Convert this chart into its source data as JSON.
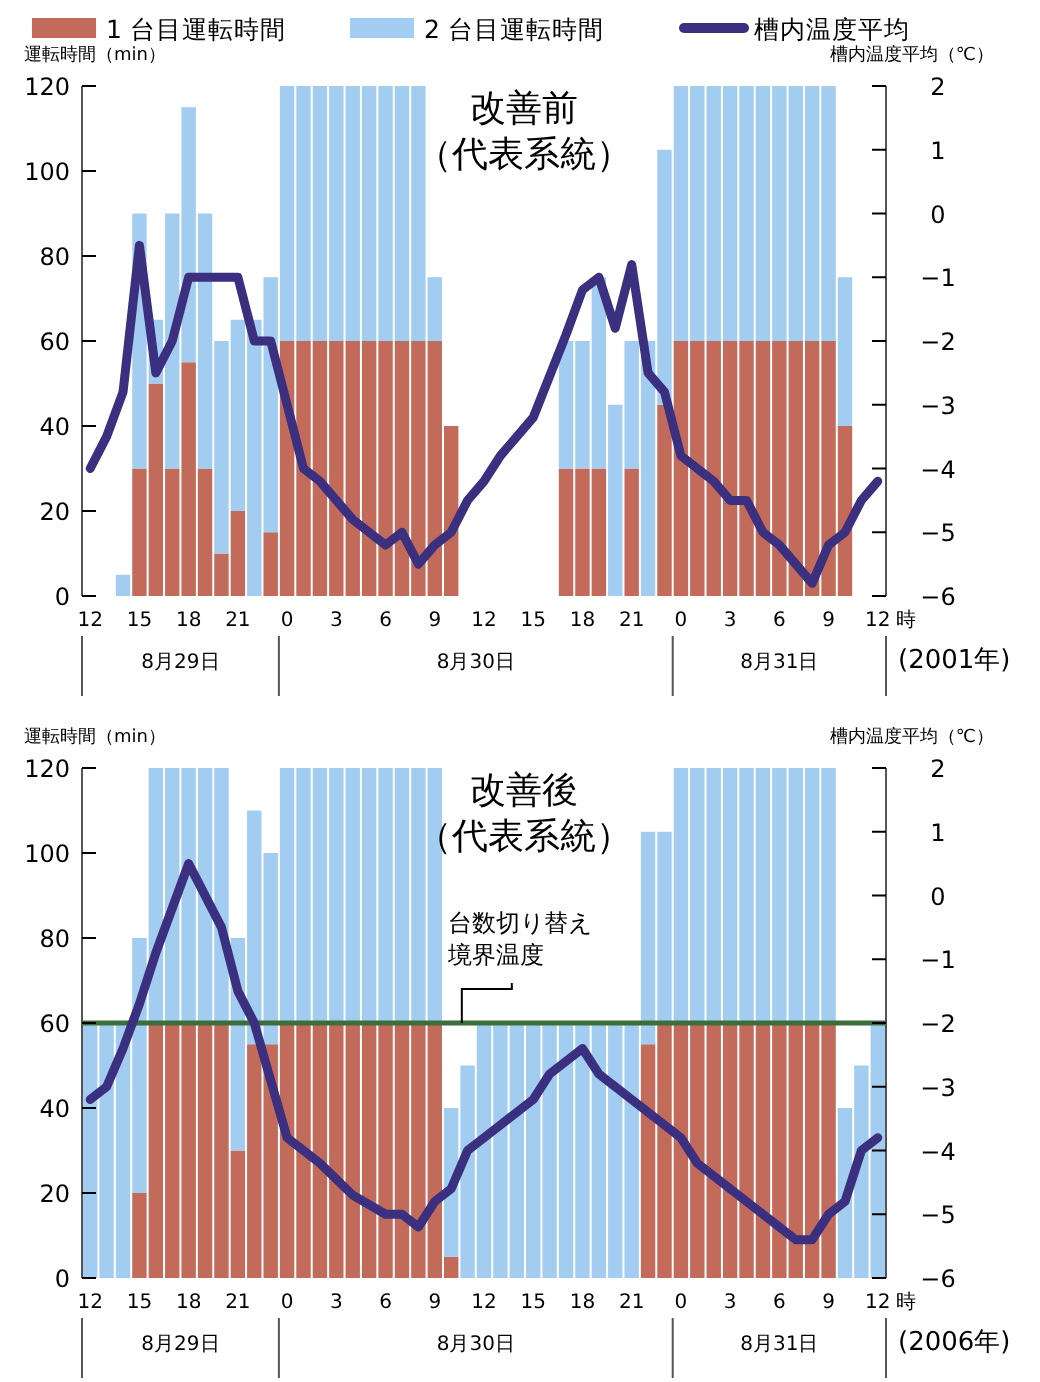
{
  "chart_data": [
    {
      "type": "bar",
      "stacked": true,
      "title": "改善前",
      "subtitle": "（代表系統）",
      "ylabel": "運転時間（min）",
      "y2label": "槽内温度平均（℃）",
      "xlabel": "時",
      "legend": "top",
      "x": [
        "2001-08-29T12:00",
        "2001-08-29T13:00",
        "2001-08-29T14:00",
        "2001-08-29T15:00",
        "2001-08-29T16:00",
        "2001-08-29T17:00",
        "2001-08-29T18:00",
        "2001-08-29T19:00",
        "2001-08-29T20:00",
        "2001-08-29T21:00",
        "2001-08-29T22:00",
        "2001-08-29T23:00",
        "2001-08-30T00:00",
        "2001-08-30T01:00",
        "2001-08-30T02:00",
        "2001-08-30T03:00",
        "2001-08-30T04:00",
        "2001-08-30T05:00",
        "2001-08-30T06:00",
        "2001-08-30T07:00",
        "2001-08-30T08:00",
        "2001-08-30T09:00",
        "2001-08-30T10:00",
        "2001-08-30T11:00",
        "2001-08-30T12:00",
        "2001-08-30T13:00",
        "2001-08-30T14:00",
        "2001-08-30T15:00",
        "2001-08-30T16:00",
        "2001-08-30T17:00",
        "2001-08-30T18:00",
        "2001-08-30T19:00",
        "2001-08-30T20:00",
        "2001-08-30T21:00",
        "2001-08-30T22:00",
        "2001-08-30T23:00",
        "2001-08-31T00:00",
        "2001-08-31T01:00",
        "2001-08-31T02:00",
        "2001-08-31T03:00",
        "2001-08-31T04:00",
        "2001-08-31T05:00",
        "2001-08-31T06:00",
        "2001-08-31T07:00",
        "2001-08-31T08:00",
        "2001-08-31T09:00",
        "2001-08-31T10:00",
        "2001-08-31T11:00",
        "2001-08-31T12:00"
      ],
      "xlim": [
        "2001-08-29T11:30",
        "2001-08-31T12:30"
      ],
      "xticks": [
        {
          "value": "2001-08-29T12:00",
          "label": "12"
        },
        {
          "value": "2001-08-29T15:00",
          "label": "15"
        },
        {
          "value": "2001-08-29T18:00",
          "label": "18"
        },
        {
          "value": "2001-08-29T21:00",
          "label": "21"
        },
        {
          "value": "2001-08-30T00:00",
          "label": "0"
        },
        {
          "value": "2001-08-30T03:00",
          "label": "3"
        },
        {
          "value": "2001-08-30T06:00",
          "label": "6"
        },
        {
          "value": "2001-08-30T09:00",
          "label": "9"
        },
        {
          "value": "2001-08-30T12:00",
          "label": "12"
        },
        {
          "value": "2001-08-30T15:00",
          "label": "15"
        },
        {
          "value": "2001-08-30T18:00",
          "label": "18"
        },
        {
          "value": "2001-08-30T21:00",
          "label": "21"
        },
        {
          "value": "2001-08-31T00:00",
          "label": "0"
        },
        {
          "value": "2001-08-31T03:00",
          "label": "3"
        },
        {
          "value": "2001-08-31T06:00",
          "label": "6"
        },
        {
          "value": "2001-08-31T09:00",
          "label": "9"
        },
        {
          "value": "2001-08-31T12:00",
          "label": "12"
        }
      ],
      "ylim": [
        0,
        120
      ],
      "yticks": [
        0,
        20,
        40,
        60,
        80,
        100,
        120
      ],
      "y2lim": [
        -6,
        2
      ],
      "y2ticks": [
        {
          "value": -6,
          "label": "−6"
        },
        {
          "value": -5,
          "label": "−5"
        },
        {
          "value": -4,
          "label": "−4"
        },
        {
          "value": -3,
          "label": "−3"
        },
        {
          "value": -2,
          "label": "−2"
        },
        {
          "value": -1,
          "label": "−1"
        },
        0,
        1,
        2
      ],
      "series": [
        {
          "name": "1 台目運転時間",
          "color": "#c26b5b",
          "values": [
            0,
            0,
            0,
            30,
            50,
            30,
            55,
            30,
            10,
            20,
            0,
            15,
            60,
            60,
            60,
            60,
            60,
            60,
            60,
            60,
            60,
            60,
            40,
            0,
            0,
            0,
            0,
            0,
            0,
            30,
            30,
            30,
            0,
            30,
            0,
            45,
            60,
            60,
            60,
            60,
            60,
            60,
            60,
            60,
            60,
            60,
            40,
            0,
            0
          ]
        },
        {
          "name": "2 台目運転時間",
          "color": "#a3cdf0",
          "values": [
            0,
            0,
            5,
            60,
            15,
            60,
            60,
            60,
            50,
            45,
            65,
            60,
            60,
            60,
            60,
            60,
            60,
            60,
            60,
            60,
            60,
            15,
            0,
            0,
            0,
            0,
            0,
            0,
            0,
            30,
            30,
            45,
            45,
            30,
            60,
            60,
            60,
            60,
            60,
            60,
            60,
            60,
            60,
            60,
            60,
            60,
            35,
            0,
            0
          ]
        },
        {
          "name": "槽内温度平均",
          "type": "line",
          "axis": "y2",
          "color": "#3b2f80",
          "x": [
            "2001-08-29T12:00",
            "2001-08-29T13:00",
            "2001-08-29T14:00",
            "2001-08-29T15:00",
            "2001-08-29T16:00",
            "2001-08-29T17:00",
            "2001-08-29T18:00",
            "2001-08-29T21:00",
            "2001-08-29T22:00",
            "2001-08-29T23:00",
            "2001-08-30T01:00",
            "2001-08-30T02:00",
            "2001-08-30T04:00",
            "2001-08-30T06:00",
            "2001-08-30T07:00",
            "2001-08-30T08:00",
            "2001-08-30T09:00",
            "2001-08-30T10:00",
            "2001-08-30T11:00",
            "2001-08-30T12:00",
            "2001-08-30T13:00",
            "2001-08-30T15:00",
            "2001-08-30T17:00",
            "2001-08-30T18:00",
            "2001-08-30T19:00",
            "2001-08-30T20:00",
            "2001-08-30T21:00",
            "2001-08-30T22:00",
            "2001-08-30T23:00",
            "2001-08-31T00:00",
            "2001-08-31T02:00",
            "2001-08-31T03:00",
            "2001-08-31T04:00",
            "2001-08-31T05:00",
            "2001-08-31T06:00",
            "2001-08-31T08:00",
            "2001-08-31T09:00",
            "2001-08-31T10:00",
            "2001-08-31T11:00",
            "2001-08-31T12:00"
          ],
          "values": [
            -4.0,
            -3.5,
            -2.8,
            -0.5,
            -2.5,
            -2.0,
            -1.0,
            -1.0,
            -2.0,
            -2.0,
            -4.0,
            -4.2,
            -4.8,
            -5.2,
            -5.0,
            -5.5,
            -5.2,
            -5.0,
            -4.5,
            -4.2,
            -3.8,
            -3.2,
            -1.9,
            -1.2,
            -1.0,
            -1.8,
            -0.8,
            -2.5,
            -2.8,
            -3.8,
            -4.2,
            -4.5,
            -4.5,
            -5.0,
            -5.2,
            -5.8,
            -5.2,
            -5.0,
            -4.5,
            -4.2
          ]
        }
      ],
      "annotations": [
        "8月29日",
        "8月30日",
        "8月31日",
        "(2001年)"
      ]
    },
    {
      "type": "bar",
      "stacked": true,
      "title": "改善後",
      "subtitle": "（代表系統）",
      "ylabel": "運転時間（min）",
      "y2label": "槽内温度平均（℃）",
      "xlabel": "時",
      "x": [
        "2006-08-29T12:00",
        "2006-08-29T13:00",
        "2006-08-29T14:00",
        "2006-08-29T15:00",
        "2006-08-29T16:00",
        "2006-08-29T17:00",
        "2006-08-29T18:00",
        "2006-08-29T19:00",
        "2006-08-29T20:00",
        "2006-08-29T21:00",
        "2006-08-29T22:00",
        "2006-08-29T23:00",
        "2006-08-30T00:00",
        "2006-08-30T01:00",
        "2006-08-30T02:00",
        "2006-08-30T03:00",
        "2006-08-30T04:00",
        "2006-08-30T05:00",
        "2006-08-30T06:00",
        "2006-08-30T07:00",
        "2006-08-30T08:00",
        "2006-08-30T09:00",
        "2006-08-30T10:00",
        "2006-08-30T11:00",
        "2006-08-30T12:00",
        "2006-08-30T13:00",
        "2006-08-30T14:00",
        "2006-08-30T15:00",
        "2006-08-30T16:00",
        "2006-08-30T17:00",
        "2006-08-30T18:00",
        "2006-08-30T19:00",
        "2006-08-30T20:00",
        "2006-08-30T21:00",
        "2006-08-30T22:00",
        "2006-08-30T23:00",
        "2006-08-31T00:00",
        "2006-08-31T01:00",
        "2006-08-31T02:00",
        "2006-08-31T03:00",
        "2006-08-31T04:00",
        "2006-08-31T05:00",
        "2006-08-31T06:00",
        "2006-08-31T07:00",
        "2006-08-31T08:00",
        "2006-08-31T09:00",
        "2006-08-31T10:00",
        "2006-08-31T11:00",
        "2006-08-31T12:00"
      ],
      "xlim": [
        "2006-08-29T11:30",
        "2006-08-31T12:30"
      ],
      "xticks": [
        {
          "value": "2006-08-29T12:00",
          "label": "12"
        },
        {
          "value": "2006-08-29T15:00",
          "label": "15"
        },
        {
          "value": "2006-08-29T18:00",
          "label": "18"
        },
        {
          "value": "2006-08-29T21:00",
          "label": "21"
        },
        {
          "value": "2006-08-30T00:00",
          "label": "0"
        },
        {
          "value": "2006-08-30T03:00",
          "label": "3"
        },
        {
          "value": "2006-08-30T06:00",
          "label": "6"
        },
        {
          "value": "2006-08-30T09:00",
          "label": "9"
        },
        {
          "value": "2006-08-30T12:00",
          "label": "12"
        },
        {
          "value": "2006-08-30T15:00",
          "label": "15"
        },
        {
          "value": "2006-08-30T18:00",
          "label": "18"
        },
        {
          "value": "2006-08-30T21:00",
          "label": "21"
        },
        {
          "value": "2006-08-31T00:00",
          "label": "0"
        },
        {
          "value": "2006-08-31T03:00",
          "label": "3"
        },
        {
          "value": "2006-08-31T06:00",
          "label": "6"
        },
        {
          "value": "2006-08-31T09:00",
          "label": "9"
        },
        {
          "value": "2006-08-31T12:00",
          "label": "12"
        }
      ],
      "ylim": [
        0,
        120
      ],
      "yticks": [
        0,
        20,
        40,
        60,
        80,
        100,
        120
      ],
      "y2lim": [
        -6,
        2
      ],
      "y2ticks": [
        {
          "value": -6,
          "label": "−6"
        },
        {
          "value": -5,
          "label": "−5"
        },
        {
          "value": -4,
          "label": "−4"
        },
        {
          "value": -3,
          "label": "−3"
        },
        {
          "value": -2,
          "label": "−2"
        },
        {
          "value": -1,
          "label": "−1"
        },
        0,
        1,
        2
      ],
      "series": [
        {
          "color": "#c26b5b",
          "values": [
            0,
            0,
            0,
            20,
            60,
            60,
            60,
            60,
            60,
            30,
            55,
            55,
            60,
            60,
            60,
            60,
            60,
            60,
            60,
            60,
            60,
            60,
            5,
            0,
            0,
            0,
            0,
            0,
            0,
            0,
            0,
            0,
            0,
            0,
            55,
            60,
            60,
            60,
            60,
            60,
            60,
            60,
            60,
            60,
            60,
            60,
            0,
            0,
            0
          ]
        },
        {
          "color": "#a3cdf0",
          "values": [
            60,
            60,
            60,
            60,
            60,
            60,
            60,
            60,
            60,
            50,
            55,
            45,
            60,
            60,
            60,
            60,
            60,
            60,
            60,
            60,
            60,
            60,
            35,
            50,
            60,
            60,
            60,
            60,
            60,
            60,
            60,
            60,
            60,
            60,
            50,
            45,
            60,
            60,
            60,
            60,
            60,
            60,
            60,
            60,
            60,
            60,
            40,
            50,
            60
          ]
        },
        {
          "type": "line",
          "axis": "y2",
          "color": "#3b2f80",
          "x": [
            "2006-08-29T12:00",
            "2006-08-29T13:00",
            "2006-08-29T14:00",
            "2006-08-29T15:00",
            "2006-08-29T16:00",
            "2006-08-29T18:00",
            "2006-08-29T20:00",
            "2006-08-29T21:00",
            "2006-08-29T22:00",
            "2006-08-29T23:00",
            "2006-08-30T00:00",
            "2006-08-30T02:00",
            "2006-08-30T04:00",
            "2006-08-30T06:00",
            "2006-08-30T07:00",
            "2006-08-30T08:00",
            "2006-08-30T09:00",
            "2006-08-30T10:00",
            "2006-08-30T11:00",
            "2006-08-30T12:00",
            "2006-08-30T13:00",
            "2006-08-30T15:00",
            "2006-08-30T16:00",
            "2006-08-30T17:00",
            "2006-08-30T18:00",
            "2006-08-30T19:00",
            "2006-08-30T21:00",
            "2006-08-30T23:00",
            "2006-08-31T00:00",
            "2006-08-31T01:00",
            "2006-08-31T03:00",
            "2006-08-31T05:00",
            "2006-08-31T07:00",
            "2006-08-31T08:00",
            "2006-08-31T09:00",
            "2006-08-31T10:00",
            "2006-08-31T11:00",
            "2006-08-31T12:00"
          ],
          "values": [
            -3.2,
            -3.0,
            -2.4,
            -1.7,
            -0.9,
            0.5,
            -0.5,
            -1.5,
            -2.0,
            -2.9,
            -3.8,
            -4.2,
            -4.7,
            -5.0,
            -5.0,
            -5.2,
            -4.8,
            -4.6,
            -4.0,
            -3.8,
            -3.6,
            -3.2,
            -2.8,
            -2.6,
            -2.4,
            -2.8,
            -3.2,
            -3.6,
            -3.8,
            -4.2,
            -4.6,
            -5.0,
            -5.4,
            -5.4,
            -5.0,
            -4.8,
            -4.0,
            -3.8
          ]
        }
      ],
      "ref_lines": [
        {
          "axis": "y2",
          "value": -2,
          "label": "台数切り替え境界温度",
          "color": "#3c6e3c"
        }
      ],
      "annotations": [
        "8月29日",
        "8月30日",
        "8月31日",
        "(2006年)"
      ]
    }
  ]
}
